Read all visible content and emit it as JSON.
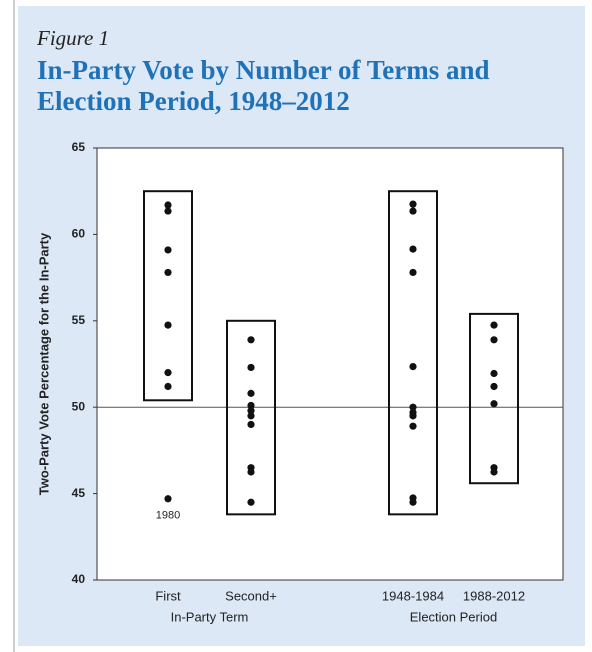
{
  "chart_data": {
    "type": "dot_range",
    "figure_label": "Figure 1",
    "title_lines": [
      "In-Party Vote by Number of Terms and",
      "Election Period, 1948–2012"
    ],
    "y_label": "Two-Party Vote Percentage for the In-Party",
    "categories": [
      "First",
      "Second+",
      "1948-1984",
      "1988-2012"
    ],
    "groups": [
      {
        "label": "In-Party Term",
        "members": [
          0,
          1
        ]
      },
      {
        "label": "Election Period",
        "members": [
          2,
          3
        ]
      }
    ],
    "values": [
      [
        61.7,
        61.35,
        59.1,
        57.8,
        54.75,
        52.0,
        51.2,
        44.7
      ],
      [
        53.9,
        52.3,
        50.8,
        50.1,
        49.8,
        49.5,
        49.0,
        46.5,
        46.25,
        44.5
      ],
      [
        61.75,
        61.35,
        59.15,
        57.8,
        52.35,
        50.0,
        49.7,
        49.5,
        48.9,
        44.75,
        44.5
      ],
      [
        54.75,
        53.9,
        51.95,
        51.2,
        50.2,
        46.5,
        46.25
      ]
    ],
    "boxes": [
      [
        50.4,
        62.5
      ],
      [
        43.8,
        55.0
      ],
      [
        43.8,
        62.5
      ],
      [
        45.6,
        55.4
      ]
    ],
    "reference_line": 50,
    "annotations": [
      {
        "text": "1980",
        "category": 0,
        "point": 7
      }
    ],
    "color": "#111111",
    "ylim": [
      40,
      65
    ],
    "yticks": [
      40,
      45,
      50,
      55,
      60,
      65
    ],
    "grid": false
  }
}
